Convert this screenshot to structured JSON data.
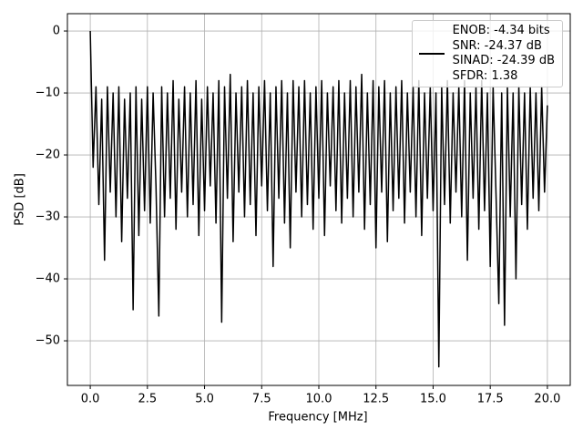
{
  "chart_data": {
    "type": "line",
    "xlabel": "Frequency [MHz]",
    "ylabel": "PSD [dB]",
    "xlim": [
      -1.0,
      21.0
    ],
    "ylim": [
      -57.2,
      2.8
    ],
    "xticks": [
      {
        "value": 0,
        "label": "0.0"
      },
      {
        "value": 2.5,
        "label": "2.5"
      },
      {
        "value": 5,
        "label": "5.0"
      },
      {
        "value": 7.5,
        "label": "7.5"
      },
      {
        "value": 10,
        "label": "10.0"
      },
      {
        "value": 12.5,
        "label": "12.5"
      },
      {
        "value": 15,
        "label": "15.0"
      },
      {
        "value": 17.5,
        "label": "17.5"
      },
      {
        "value": 20,
        "label": "20.0"
      }
    ],
    "yticks": [
      {
        "value": 0,
        "label": "0"
      },
      {
        "value": -10,
        "label": "−10"
      },
      {
        "value": -20,
        "label": "−20"
      },
      {
        "value": -30,
        "label": "−30"
      },
      {
        "value": -40,
        "label": "−40"
      },
      {
        "value": -50,
        "label": "−50"
      }
    ],
    "grid": true,
    "legend": "upper right",
    "x": [
      0,
      0.125,
      0.25,
      0.375,
      0.5,
      0.625,
      0.75,
      0.875,
      1,
      1.125,
      1.25,
      1.375,
      1.5,
      1.625,
      1.75,
      1.875,
      2,
      2.125,
      2.25,
      2.375,
      2.5,
      2.625,
      2.75,
      2.875,
      3,
      3.125,
      3.25,
      3.375,
      3.5,
      3.625,
      3.75,
      3.875,
      4,
      4.125,
      4.25,
      4.375,
      4.5,
      4.625,
      4.75,
      4.875,
      5,
      5.125,
      5.25,
      5.375,
      5.5,
      5.625,
      5.75,
      5.875,
      6,
      6.125,
      6.25,
      6.375,
      6.5,
      6.625,
      6.75,
      6.875,
      7,
      7.125,
      7.25,
      7.375,
      7.5,
      7.625,
      7.75,
      7.875,
      8,
      8.125,
      8.25,
      8.375,
      8.5,
      8.625,
      8.75,
      8.875,
      9,
      9.125,
      9.25,
      9.375,
      9.5,
      9.625,
      9.75,
      9.875,
      10,
      10.125,
      10.25,
      10.375,
      10.5,
      10.625,
      10.75,
      10.875,
      11,
      11.125,
      11.25,
      11.375,
      11.5,
      11.625,
      11.75,
      11.875,
      12,
      12.125,
      12.25,
      12.375,
      12.5,
      12.625,
      12.75,
      12.875,
      13,
      13.125,
      13.25,
      13.375,
      13.5,
      13.625,
      13.75,
      13.875,
      14,
      14.125,
      14.25,
      14.375,
      14.5,
      14.625,
      14.75,
      14.875,
      15,
      15.125,
      15.25,
      15.375,
      15.5,
      15.625,
      15.75,
      15.875,
      16,
      16.125,
      16.25,
      16.375,
      16.5,
      16.625,
      16.75,
      16.875,
      17,
      17.125,
      17.25,
      17.375,
      17.5,
      17.625,
      17.75,
      17.875,
      18,
      18.125,
      18.25,
      18.375,
      18.5,
      18.625,
      18.75,
      18.875,
      19,
      19.125,
      19.25,
      19.375,
      19.5,
      19.625,
      19.75,
      19.875,
      20
    ],
    "series": [
      {
        "name": "ENOB: -4.34 bits\nSNR: -24.37 dB\nSINAD: -24.39 dB\nSFDR: 1.38",
        "color": "#000000",
        "values": [
          0,
          -22,
          -9,
          -28,
          -11,
          -37,
          -9,
          -26,
          -10,
          -30,
          -9,
          -34,
          -11,
          -27,
          -10,
          -45,
          -9,
          -33,
          -11,
          -29,
          -9,
          -31,
          -10,
          -25,
          -46,
          -9,
          -30,
          -10,
          -27,
          -8,
          -32,
          -11,
          -26,
          -9,
          -30,
          -10,
          -28,
          -8,
          -33,
          -11,
          -29,
          -9,
          -25,
          -10,
          -31,
          -8,
          -47,
          -9,
          -27,
          -7,
          -34,
          -10,
          -26,
          -9,
          -30,
          -8,
          -28,
          -10,
          -33,
          -9,
          -25,
          -8,
          -29,
          -10,
          -38,
          -9,
          -27,
          -8,
          -31,
          -10,
          -35,
          -8,
          -26,
          -9,
          -30,
          -8,
          -28,
          -10,
          -32,
          -9,
          -27,
          -8,
          -33,
          -10,
          -25,
          -9,
          -29,
          -8,
          -31,
          -10,
          -27,
          -8,
          -30,
          -9,
          -26,
          -7,
          -32,
          -10,
          -28,
          -8,
          -35,
          -9,
          -26,
          -8,
          -34,
          -10,
          -29,
          -9,
          -27,
          -8,
          -31,
          -10,
          -26,
          -9,
          -30,
          -8,
          -33,
          -10,
          -27,
          -9,
          -29,
          -10,
          -54.2,
          -9,
          -28,
          -8,
          -31,
          -10,
          -26,
          -9,
          -30,
          -8,
          -37,
          -10,
          -27,
          -9,
          -32,
          -8,
          -29,
          -10,
          -38,
          -9,
          -26,
          -44,
          -10,
          -47.5,
          -9,
          -30,
          -10,
          -40,
          -9,
          -28,
          -10,
          -32,
          -9,
          -27,
          -10,
          -29,
          -9,
          -26,
          -12
        ]
      }
    ]
  }
}
